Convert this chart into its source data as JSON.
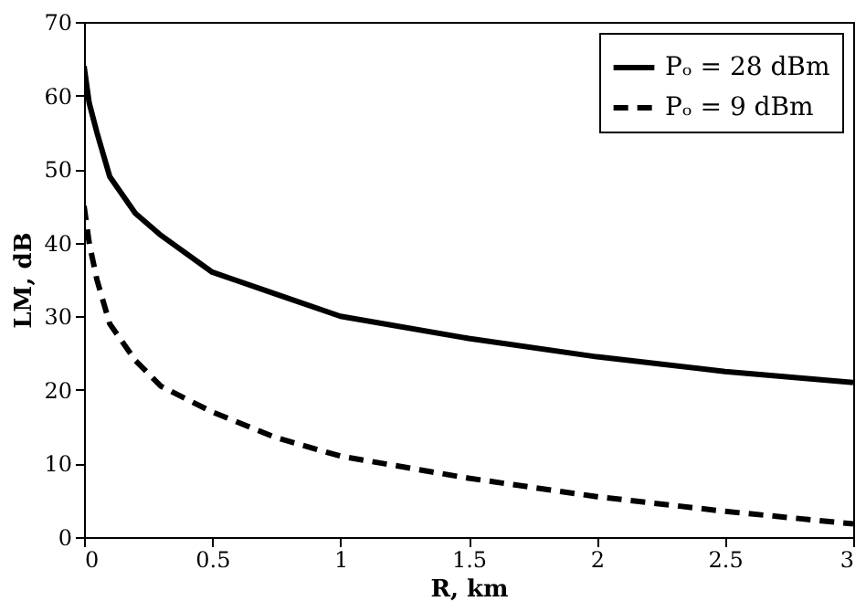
{
  "chart_data": {
    "type": "line",
    "xlabel": "R, km",
    "ylabel": "LM, dB",
    "xlim": [
      0,
      3
    ],
    "xticks": [
      0,
      0.5,
      1,
      1.5,
      2,
      2.5,
      3
    ],
    "ylim": [
      0,
      70
    ],
    "yticks": [
      0,
      10,
      20,
      30,
      40,
      50,
      60,
      70
    ],
    "grid": false,
    "legend": "top right",
    "marker": "none",
    "series": [
      {
        "name": "Pₒ = 28 dBm",
        "color": "#000000",
        "line_style": "solid",
        "x": [
          0,
          0.02,
          0.05,
          0.1,
          0.2,
          0.3,
          0.5,
          0.75,
          1,
          1.5,
          2,
          2.5,
          3
        ],
        "values": [
          64,
          59,
          55,
          49,
          44,
          41,
          36,
          33,
          30,
          27,
          24.5,
          22.5,
          21
        ]
      },
      {
        "name": "Pₒ = 9 dBm",
        "color": "#000000",
        "line_style": "dashed",
        "x": [
          0,
          0.02,
          0.05,
          0.1,
          0.2,
          0.3,
          0.5,
          0.75,
          1,
          1.5,
          2,
          2.5,
          3
        ],
        "values": [
          45,
          40,
          35,
          29,
          24,
          20.5,
          17,
          13.5,
          11,
          8,
          5.5,
          3.5,
          1.8
        ]
      }
    ]
  }
}
